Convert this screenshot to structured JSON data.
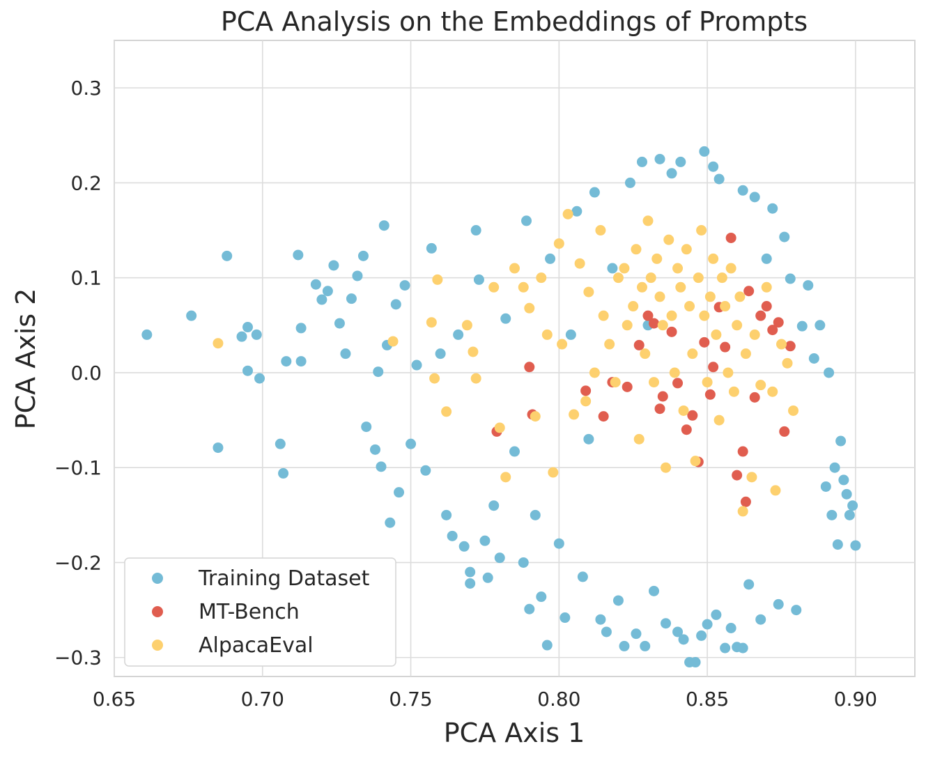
{
  "chart_data": {
    "type": "scatter",
    "title": "PCA Analysis on the Embeddings of Prompts",
    "xlabel": "PCA Axis 1",
    "ylabel": "PCA Axis 2",
    "xlim": [
      0.65,
      0.92
    ],
    "ylim": [
      -0.32,
      0.35
    ],
    "xticks": [
      0.65,
      0.7,
      0.75,
      0.8,
      0.85,
      0.9
    ],
    "xtick_labels": [
      "0.65",
      "0.70",
      "0.75",
      "0.80",
      "0.85",
      "0.90"
    ],
    "yticks": [
      -0.3,
      -0.2,
      -0.1,
      0.0,
      0.1,
      0.2,
      0.3
    ],
    "ytick_labels": [
      "−0.3",
      "−0.2",
      "−0.1",
      "0.0",
      "0.1",
      "0.2",
      "0.3"
    ],
    "grid": true,
    "legend_position": "bottom-left",
    "series": [
      {
        "name": "Training Dataset",
        "color": "#74bbd6",
        "points": [
          [
            0.661,
            0.04
          ],
          [
            0.676,
            0.06
          ],
          [
            0.685,
            -0.079
          ],
          [
            0.688,
            0.123
          ],
          [
            0.693,
            0.038
          ],
          [
            0.695,
            0.048
          ],
          [
            0.695,
            0.002
          ],
          [
            0.698,
            0.04
          ],
          [
            0.699,
            -0.006
          ],
          [
            0.706,
            -0.075
          ],
          [
            0.707,
            -0.106
          ],
          [
            0.708,
            0.012
          ],
          [
            0.712,
            0.124
          ],
          [
            0.713,
            0.047
          ],
          [
            0.713,
            0.012
          ],
          [
            0.718,
            0.093
          ],
          [
            0.72,
            0.077
          ],
          [
            0.722,
            0.086
          ],
          [
            0.724,
            0.113
          ],
          [
            0.726,
            0.052
          ],
          [
            0.728,
            0.02
          ],
          [
            0.73,
            0.078
          ],
          [
            0.732,
            0.102
          ],
          [
            0.734,
            0.123
          ],
          [
            0.735,
            -0.057
          ],
          [
            0.738,
            -0.081
          ],
          [
            0.739,
            0.001
          ],
          [
            0.74,
            -0.099
          ],
          [
            0.741,
            0.155
          ],
          [
            0.742,
            0.029
          ],
          [
            0.743,
            -0.158
          ],
          [
            0.745,
            0.072
          ],
          [
            0.746,
            -0.126
          ],
          [
            0.748,
            0.092
          ],
          [
            0.75,
            -0.075
          ],
          [
            0.752,
            0.008
          ],
          [
            0.755,
            -0.103
          ],
          [
            0.757,
            0.131
          ],
          [
            0.76,
            0.02
          ],
          [
            0.762,
            -0.15
          ],
          [
            0.764,
            -0.172
          ],
          [
            0.766,
            0.04
          ],
          [
            0.768,
            -0.183
          ],
          [
            0.77,
            -0.21
          ],
          [
            0.77,
            -0.222
          ],
          [
            0.772,
            0.15
          ],
          [
            0.773,
            0.098
          ],
          [
            0.775,
            -0.177
          ],
          [
            0.776,
            -0.216
          ],
          [
            0.778,
            -0.14
          ],
          [
            0.78,
            -0.195
          ],
          [
            0.782,
            0.057
          ],
          [
            0.785,
            -0.083
          ],
          [
            0.788,
            -0.2
          ],
          [
            0.789,
            0.16
          ],
          [
            0.79,
            -0.249
          ],
          [
            0.792,
            -0.15
          ],
          [
            0.794,
            -0.236
          ],
          [
            0.796,
            -0.287
          ],
          [
            0.797,
            0.12
          ],
          [
            0.8,
            -0.18
          ],
          [
            0.802,
            -0.258
          ],
          [
            0.804,
            0.04
          ],
          [
            0.806,
            0.17
          ],
          [
            0.808,
            -0.215
          ],
          [
            0.81,
            -0.07
          ],
          [
            0.812,
            0.19
          ],
          [
            0.814,
            -0.26
          ],
          [
            0.816,
            -0.273
          ],
          [
            0.818,
            0.11
          ],
          [
            0.82,
            -0.24
          ],
          [
            0.822,
            -0.288
          ],
          [
            0.824,
            0.2
          ],
          [
            0.826,
            -0.275
          ],
          [
            0.828,
            0.222
          ],
          [
            0.829,
            -0.288
          ],
          [
            0.83,
            0.05
          ],
          [
            0.832,
            -0.23
          ],
          [
            0.834,
            0.225
          ],
          [
            0.836,
            -0.264
          ],
          [
            0.838,
            0.21
          ],
          [
            0.84,
            -0.273
          ],
          [
            0.841,
            0.222
          ],
          [
            0.842,
            -0.281
          ],
          [
            0.844,
            -0.305
          ],
          [
            0.846,
            -0.305
          ],
          [
            0.848,
            -0.277
          ],
          [
            0.849,
            0.233
          ],
          [
            0.85,
            -0.265
          ],
          [
            0.852,
            0.217
          ],
          [
            0.853,
            -0.255
          ],
          [
            0.854,
            0.204
          ],
          [
            0.856,
            -0.29
          ],
          [
            0.858,
            -0.269
          ],
          [
            0.86,
            -0.289
          ],
          [
            0.862,
            -0.29
          ],
          [
            0.862,
            0.192
          ],
          [
            0.864,
            -0.223
          ],
          [
            0.866,
            0.185
          ],
          [
            0.868,
            -0.26
          ],
          [
            0.87,
            0.12
          ],
          [
            0.872,
            0.173
          ],
          [
            0.874,
            -0.244
          ],
          [
            0.876,
            0.143
          ],
          [
            0.878,
            0.099
          ],
          [
            0.88,
            -0.25
          ],
          [
            0.882,
            0.049
          ],
          [
            0.884,
            0.092
          ],
          [
            0.886,
            0.015
          ],
          [
            0.888,
            0.05
          ],
          [
            0.89,
            -0.12
          ],
          [
            0.891,
            0.0
          ],
          [
            0.892,
            -0.15
          ],
          [
            0.893,
            -0.1
          ],
          [
            0.894,
            -0.181
          ],
          [
            0.895,
            -0.072
          ],
          [
            0.896,
            -0.113
          ],
          [
            0.897,
            -0.128
          ],
          [
            0.898,
            -0.15
          ],
          [
            0.899,
            -0.14
          ],
          [
            0.9,
            -0.182
          ]
        ]
      },
      {
        "name": "MT-Bench",
        "color": "#e05d4f",
        "points": [
          [
            0.779,
            -0.062
          ],
          [
            0.79,
            0.006
          ],
          [
            0.791,
            -0.044
          ],
          [
            0.809,
            -0.019
          ],
          [
            0.815,
            -0.046
          ],
          [
            0.818,
            -0.01
          ],
          [
            0.823,
            -0.015
          ],
          [
            0.827,
            0.029
          ],
          [
            0.83,
            0.06
          ],
          [
            0.832,
            0.052
          ],
          [
            0.834,
            -0.038
          ],
          [
            0.835,
            -0.025
          ],
          [
            0.838,
            0.043
          ],
          [
            0.84,
            -0.011
          ],
          [
            0.843,
            -0.06
          ],
          [
            0.845,
            -0.045
          ],
          [
            0.847,
            -0.094
          ],
          [
            0.849,
            0.032
          ],
          [
            0.851,
            -0.023
          ],
          [
            0.852,
            0.006
          ],
          [
            0.854,
            0.069
          ],
          [
            0.856,
            0.027
          ],
          [
            0.858,
            0.142
          ],
          [
            0.86,
            -0.108
          ],
          [
            0.862,
            -0.083
          ],
          [
            0.863,
            -0.136
          ],
          [
            0.864,
            0.086
          ],
          [
            0.866,
            -0.026
          ],
          [
            0.868,
            0.06
          ],
          [
            0.87,
            0.07
          ],
          [
            0.872,
            0.045
          ],
          [
            0.874,
            0.053
          ],
          [
            0.876,
            -0.062
          ],
          [
            0.878,
            0.028
          ]
        ]
      },
      {
        "name": "AlpacaEval",
        "color": "#fdd06e",
        "points": [
          [
            0.685,
            0.031
          ],
          [
            0.744,
            0.033
          ],
          [
            0.757,
            0.053
          ],
          [
            0.758,
            -0.006
          ],
          [
            0.759,
            0.098
          ],
          [
            0.762,
            -0.041
          ],
          [
            0.769,
            0.05
          ],
          [
            0.771,
            0.022
          ],
          [
            0.772,
            -0.006
          ],
          [
            0.778,
            0.09
          ],
          [
            0.78,
            -0.058
          ],
          [
            0.782,
            -0.11
          ],
          [
            0.785,
            0.11
          ],
          [
            0.788,
            0.09
          ],
          [
            0.79,
            0.068
          ],
          [
            0.792,
            -0.046
          ],
          [
            0.794,
            0.1
          ],
          [
            0.796,
            0.04
          ],
          [
            0.798,
            -0.105
          ],
          [
            0.8,
            0.136
          ],
          [
            0.801,
            0.03
          ],
          [
            0.803,
            0.167
          ],
          [
            0.805,
            -0.044
          ],
          [
            0.807,
            0.115
          ],
          [
            0.809,
            -0.03
          ],
          [
            0.81,
            0.085
          ],
          [
            0.812,
            0.0
          ],
          [
            0.814,
            0.15
          ],
          [
            0.815,
            0.06
          ],
          [
            0.817,
            0.03
          ],
          [
            0.819,
            -0.01
          ],
          [
            0.82,
            0.1
          ],
          [
            0.822,
            0.11
          ],
          [
            0.823,
            0.05
          ],
          [
            0.825,
            0.07
          ],
          [
            0.826,
            0.13
          ],
          [
            0.827,
            -0.07
          ],
          [
            0.828,
            0.09
          ],
          [
            0.829,
            0.02
          ],
          [
            0.83,
            0.16
          ],
          [
            0.831,
            0.1
          ],
          [
            0.832,
            -0.01
          ],
          [
            0.833,
            0.12
          ],
          [
            0.834,
            0.08
          ],
          [
            0.835,
            0.05
          ],
          [
            0.836,
            -0.1
          ],
          [
            0.837,
            0.14
          ],
          [
            0.838,
            0.06
          ],
          [
            0.839,
            0.0
          ],
          [
            0.84,
            0.11
          ],
          [
            0.841,
            0.09
          ],
          [
            0.842,
            -0.04
          ],
          [
            0.843,
            0.13
          ],
          [
            0.844,
            0.07
          ],
          [
            0.845,
            0.02
          ],
          [
            0.846,
            -0.093
          ],
          [
            0.847,
            0.1
          ],
          [
            0.848,
            0.15
          ],
          [
            0.849,
            0.06
          ],
          [
            0.85,
            -0.01
          ],
          [
            0.851,
            0.08
          ],
          [
            0.852,
            0.12
          ],
          [
            0.853,
            0.04
          ],
          [
            0.854,
            -0.05
          ],
          [
            0.855,
            0.1
          ],
          [
            0.856,
            0.07
          ],
          [
            0.857,
            0.0
          ],
          [
            0.858,
            0.11
          ],
          [
            0.859,
            -0.02
          ],
          [
            0.86,
            0.05
          ],
          [
            0.861,
            0.08
          ],
          [
            0.862,
            -0.146
          ],
          [
            0.863,
            0.02
          ],
          [
            0.865,
            -0.11
          ],
          [
            0.866,
            0.04
          ],
          [
            0.868,
            -0.013
          ],
          [
            0.87,
            0.09
          ],
          [
            0.872,
            -0.02
          ],
          [
            0.873,
            -0.124
          ],
          [
            0.875,
            0.03
          ],
          [
            0.877,
            0.01
          ],
          [
            0.879,
            -0.04
          ]
        ]
      }
    ]
  }
}
